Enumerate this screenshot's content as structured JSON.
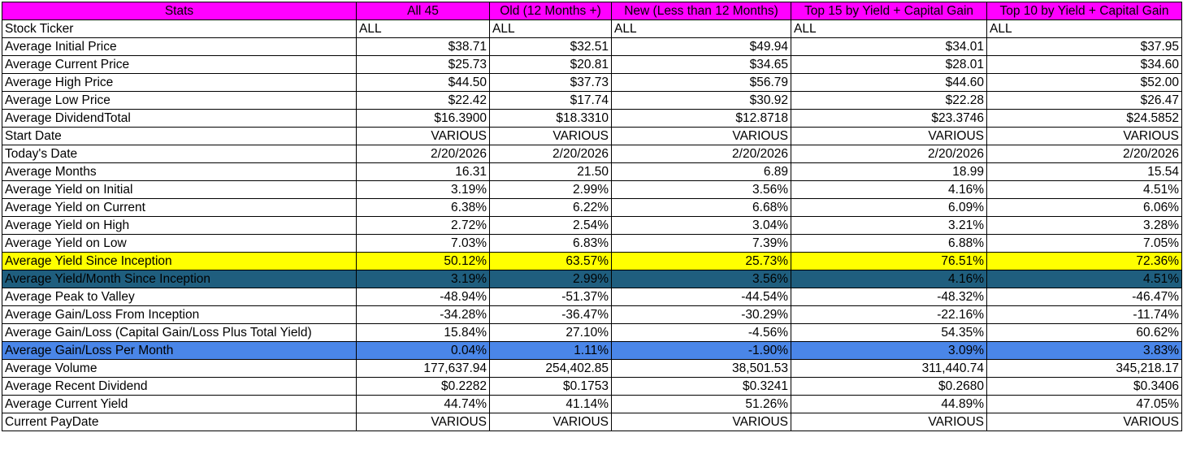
{
  "header": [
    "Stats",
    "All 45",
    "Old (12 Months +)",
    "New (Less than 12 Months)",
    "Top 15 by Yield + Capital Gain",
    "Top 10 by Yield + Capital Gain"
  ],
  "colors": {
    "header_bg": "#ff00ff",
    "yellow_highlight": "#ffff00",
    "teal_highlight": "#1f5e7e",
    "blue_highlight": "#4a86e8"
  },
  "rows": [
    {
      "label": "Stock Ticker",
      "values": [
        "ALL",
        "ALL",
        "ALL",
        "ALL",
        "ALL"
      ]
    },
    {
      "label": "Average Initial Price",
      "values": [
        "$38.71",
        "$32.51",
        "$49.94",
        "$34.01",
        "$37.95"
      ]
    },
    {
      "label": "Average Current Price",
      "values": [
        "$25.73",
        "$20.81",
        "$34.65",
        "$28.01",
        "$34.60"
      ]
    },
    {
      "label": "Average High Price",
      "values": [
        "$44.50",
        "$37.73",
        "$56.79",
        "$44.60",
        "$52.00"
      ]
    },
    {
      "label": "Average Low Price",
      "values": [
        "$22.42",
        "$17.74",
        "$30.92",
        "$22.28",
        "$26.47"
      ]
    },
    {
      "label": "Average DividendTotal",
      "values": [
        "$16.3900",
        "$18.3310",
        "$12.8718",
        "$23.3746",
        "$24.5852"
      ]
    },
    {
      "label": "Start Date",
      "values": [
        "VARIOUS",
        "VARIOUS",
        "VARIOUS",
        "VARIOUS",
        "VARIOUS"
      ]
    },
    {
      "label": "Today's Date",
      "values": [
        "2/20/2026",
        "2/20/2026",
        "2/20/2026",
        "2/20/2026",
        "2/20/2026"
      ]
    },
    {
      "label": "Average Months",
      "values": [
        "16.31",
        "21.50",
        "6.89",
        "18.99",
        "15.54"
      ]
    },
    {
      "label": "Average Yield on Initial",
      "values": [
        "3.19%",
        "2.99%",
        "3.56%",
        "4.16%",
        "4.51%"
      ]
    },
    {
      "label": "Average Yield on Current",
      "values": [
        "6.38%",
        "6.22%",
        "6.68%",
        "6.09%",
        "6.06%"
      ]
    },
    {
      "label": "Average Yield on High",
      "values": [
        "2.72%",
        "2.54%",
        "3.04%",
        "3.21%",
        "3.28%"
      ]
    },
    {
      "label": "Average Yield on Low",
      "values": [
        "7.03%",
        "6.83%",
        "7.39%",
        "6.88%",
        "7.05%"
      ]
    },
    {
      "label": "Average Yield Since Inception",
      "values": [
        "50.12%",
        "63.57%",
        "25.73%",
        "76.51%",
        "72.36%"
      ]
    },
    {
      "label": "Average Yield/Month Since Inception",
      "values": [
        "3.19%",
        "2.99%",
        "3.56%",
        "4.16%",
        "4.51%"
      ]
    },
    {
      "label": "Average Peak to Valley",
      "values": [
        "-48.94%",
        "-51.37%",
        "-44.54%",
        "-48.32%",
        "-46.47%"
      ]
    },
    {
      "label": "Average Gain/Loss From Inception",
      "values": [
        "-34.28%",
        "-36.47%",
        "-30.29%",
        "-22.16%",
        "-11.74%"
      ]
    },
    {
      "label": "Average Gain/Loss (Capital Gain/Loss Plus Total Yield)",
      "values": [
        "15.84%",
        "27.10%",
        "-4.56%",
        "54.35%",
        "60.62%"
      ]
    },
    {
      "label": "Average Gain/Loss Per Month",
      "values": [
        "0.04%",
        "1.11%",
        "-1.90%",
        "3.09%",
        "3.83%"
      ]
    },
    {
      "label": "Average Volume",
      "values": [
        "177,637.94",
        "254,402.85",
        "38,501.53",
        "311,440.74",
        "345,218.17"
      ]
    },
    {
      "label": "Average Recent Dividend",
      "values": [
        "$0.2282",
        "$0.1753",
        "$0.3241",
        "$0.2680",
        "$0.3406"
      ]
    },
    {
      "label": "Average Current Yield",
      "values": [
        "44.74%",
        "41.14%",
        "51.26%",
        "44.89%",
        "47.05%"
      ]
    },
    {
      "label": "Current PayDate",
      "values": [
        "VARIOUS",
        "VARIOUS",
        "VARIOUS",
        "VARIOUS",
        "VARIOUS"
      ]
    }
  ]
}
